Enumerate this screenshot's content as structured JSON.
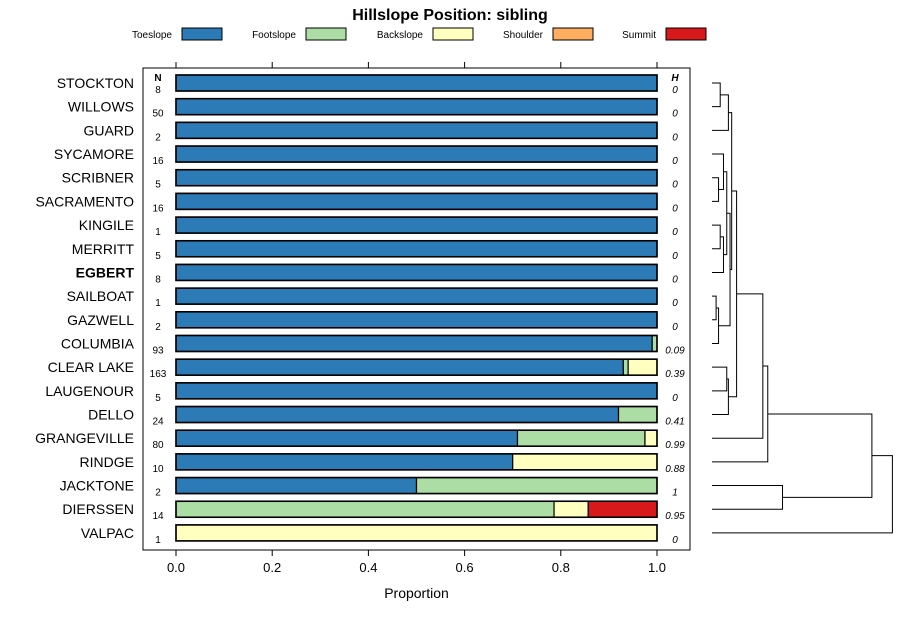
{
  "chart_data": {
    "type": "bar",
    "orientation": "horizontal",
    "stacked": true,
    "title": "Hillslope Position: sibling",
    "xlabel": "Proportion",
    "xlim": [
      0,
      1
    ],
    "xticks": [
      "0.0",
      "0.2",
      "0.4",
      "0.6",
      "0.8",
      "1.0"
    ],
    "n_header": "N",
    "h_header": "H",
    "legend_position": "top",
    "series": [
      {
        "name": "Toeslope",
        "color": "#2c7bb6"
      },
      {
        "name": "Footslope",
        "color": "#abdda4"
      },
      {
        "name": "Backslope",
        "color": "#ffffbf"
      },
      {
        "name": "Shoulder",
        "color": "#fdae61"
      },
      {
        "name": "Summit",
        "color": "#d7191c"
      }
    ],
    "rows": [
      {
        "label": "STOCKTON",
        "n": "8",
        "h": "0",
        "bold": false,
        "values": [
          1,
          0,
          0,
          0,
          0
        ]
      },
      {
        "label": "WILLOWS",
        "n": "50",
        "h": "0",
        "bold": false,
        "values": [
          1,
          0,
          0,
          0,
          0
        ]
      },
      {
        "label": "GUARD",
        "n": "2",
        "h": "0",
        "bold": false,
        "values": [
          1,
          0,
          0,
          0,
          0
        ]
      },
      {
        "label": "SYCAMORE",
        "n": "16",
        "h": "0",
        "bold": false,
        "values": [
          1,
          0,
          0,
          0,
          0
        ]
      },
      {
        "label": "SCRIBNER",
        "n": "5",
        "h": "0",
        "bold": false,
        "values": [
          1,
          0,
          0,
          0,
          0
        ]
      },
      {
        "label": "SACRAMENTO",
        "n": "16",
        "h": "0",
        "bold": false,
        "values": [
          1,
          0,
          0,
          0,
          0
        ]
      },
      {
        "label": "KINGILE",
        "n": "1",
        "h": "0",
        "bold": false,
        "values": [
          1,
          0,
          0,
          0,
          0
        ]
      },
      {
        "label": "MERRITT",
        "n": "5",
        "h": "0",
        "bold": false,
        "values": [
          1,
          0,
          0,
          0,
          0
        ]
      },
      {
        "label": "EGBERT",
        "n": "8",
        "h": "0",
        "bold": true,
        "values": [
          1,
          0,
          0,
          0,
          0
        ]
      },
      {
        "label": "SAILBOAT",
        "n": "1",
        "h": "0",
        "bold": false,
        "values": [
          1,
          0,
          0,
          0,
          0
        ]
      },
      {
        "label": "GAZWELL",
        "n": "2",
        "h": "0",
        "bold": false,
        "values": [
          1,
          0,
          0,
          0,
          0
        ]
      },
      {
        "label": "COLUMBIA",
        "n": "93",
        "h": "0.09",
        "bold": false,
        "values": [
          0.99,
          0.01,
          0,
          0,
          0
        ]
      },
      {
        "label": "CLEAR LAKE",
        "n": "163",
        "h": "0.39",
        "bold": false,
        "values": [
          0.93,
          0.01,
          0.06,
          0,
          0
        ]
      },
      {
        "label": "LAUGENOUR",
        "n": "5",
        "h": "0",
        "bold": false,
        "values": [
          1,
          0,
          0,
          0,
          0
        ]
      },
      {
        "label": "DELLO",
        "n": "24",
        "h": "0.41",
        "bold": false,
        "values": [
          0.92,
          0.08,
          0,
          0,
          0
        ]
      },
      {
        "label": "GRANGEVILLE",
        "n": "80",
        "h": "0.99",
        "bold": false,
        "values": [
          0.71,
          0.265,
          0.025,
          0,
          0
        ]
      },
      {
        "label": "RINDGE",
        "n": "10",
        "h": "0.88",
        "bold": false,
        "values": [
          0.7,
          0,
          0.3,
          0,
          0
        ]
      },
      {
        "label": "JACKTONE",
        "n": "2",
        "h": "1",
        "bold": false,
        "values": [
          0.5,
          0.5,
          0,
          0,
          0
        ]
      },
      {
        "label": "DIERSSEN",
        "n": "14",
        "h": "0.95",
        "bold": false,
        "values": [
          0,
          0.786,
          0.071,
          0,
          0.143
        ]
      },
      {
        "label": "VALPAC",
        "n": "1",
        "h": "0",
        "bold": false,
        "values": [
          0,
          0,
          1,
          0,
          0
        ]
      }
    ],
    "dendrogram": [
      {
        "a": 0,
        "b": 1,
        "h": 0.1
      },
      {
        "a": 2,
        "b": 20,
        "h": 0.2
      },
      {
        "a": 4,
        "b": 5,
        "h": 0.08
      },
      {
        "a": 3,
        "b": 22,
        "h": 0.14
      },
      {
        "a": 6,
        "b": 7,
        "h": 0.1
      },
      {
        "a": 24,
        "b": 8,
        "h": 0.14
      },
      {
        "a": 9,
        "b": 10,
        "h": 0.05
      },
      {
        "a": 26,
        "b": 11,
        "h": 0.08
      },
      {
        "a": 23,
        "b": 25,
        "h": 0.18
      },
      {
        "a": 28,
        "b": 27,
        "h": 0.22
      },
      {
        "a": 12,
        "b": 13,
        "h": 0.18
      },
      {
        "a": 30,
        "b": 14,
        "h": 0.2
      },
      {
        "a": 21,
        "b": 29,
        "h": 0.24
      },
      {
        "a": 32,
        "b": 31,
        "h": 0.3
      },
      {
        "a": 33,
        "b": 15,
        "h": 0.62
      },
      {
        "a": 34,
        "b": 16,
        "h": 0.68
      },
      {
        "a": 17,
        "b": 18,
        "h": 0.86
      },
      {
        "a": 35,
        "b": 36,
        "h": 1.95
      },
      {
        "a": 37,
        "b": 19,
        "h": 2.2
      }
    ]
  }
}
